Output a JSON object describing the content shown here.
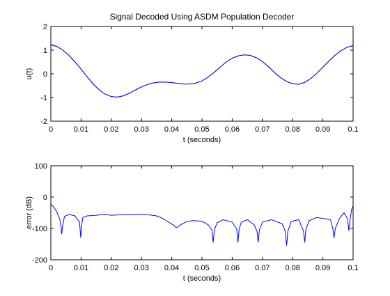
{
  "chart_data": [
    {
      "type": "line",
      "title": "Signal Decoded Using ASDM Population Decoder",
      "xlabel": "t (seconds)",
      "ylabel": "u(t)",
      "xlim": [
        0,
        0.1
      ],
      "ylim": [
        -2,
        2
      ],
      "xticks": [
        "0",
        "0.01",
        "0.02",
        "0.03",
        "0.04",
        "0.05",
        "0.06",
        "0.07",
        "0.08",
        "0.09",
        "0.1"
      ],
      "yticks": [
        "-2",
        "-1",
        "0",
        "1",
        "2"
      ],
      "grid": false,
      "series": [
        {
          "color": "#ff0000",
          "x": [
            0,
            0.002,
            0.004,
            0.006,
            0.008,
            0.01,
            0.012,
            0.014,
            0.016,
            0.018,
            0.02,
            0.022,
            0.024,
            0.026,
            0.028,
            0.03,
            0.032,
            0.034,
            0.036,
            0.038,
            0.04,
            0.042,
            0.044,
            0.046,
            0.048,
            0.05,
            0.052,
            0.054,
            0.056,
            0.058,
            0.06,
            0.062,
            0.064,
            0.066,
            0.068,
            0.07,
            0.072,
            0.074,
            0.076,
            0.078,
            0.08,
            0.082,
            0.084,
            0.086,
            0.088,
            0.09,
            0.092,
            0.094,
            0.096,
            0.098,
            0.1
          ],
          "y": [
            1.22,
            1.15,
            1.0,
            0.78,
            0.5,
            0.2,
            -0.12,
            -0.43,
            -0.68,
            -0.86,
            -0.96,
            -0.98,
            -0.93,
            -0.82,
            -0.68,
            -0.55,
            -0.45,
            -0.38,
            -0.35,
            -0.35,
            -0.37,
            -0.4,
            -0.43,
            -0.43,
            -0.39,
            -0.3,
            -0.14,
            0.06,
            0.28,
            0.5,
            0.66,
            0.76,
            0.8,
            0.78,
            0.68,
            0.52,
            0.3,
            0.06,
            -0.16,
            -0.32,
            -0.42,
            -0.44,
            -0.36,
            -0.2,
            0.02,
            0.28,
            0.54,
            0.78,
            0.98,
            1.12,
            1.2
          ]
        },
        {
          "color": "#0000ff",
          "x": [
            0,
            0.002,
            0.004,
            0.006,
            0.008,
            0.01,
            0.012,
            0.014,
            0.016,
            0.018,
            0.02,
            0.022,
            0.024,
            0.026,
            0.028,
            0.03,
            0.032,
            0.034,
            0.036,
            0.038,
            0.04,
            0.042,
            0.044,
            0.046,
            0.048,
            0.05,
            0.052,
            0.054,
            0.056,
            0.058,
            0.06,
            0.062,
            0.064,
            0.066,
            0.068,
            0.07,
            0.072,
            0.074,
            0.076,
            0.078,
            0.08,
            0.082,
            0.084,
            0.086,
            0.088,
            0.09,
            0.092,
            0.094,
            0.096,
            0.098,
            0.1
          ],
          "y": [
            1.24,
            1.16,
            1.0,
            0.78,
            0.5,
            0.2,
            -0.12,
            -0.43,
            -0.68,
            -0.86,
            -0.96,
            -0.98,
            -0.93,
            -0.82,
            -0.68,
            -0.55,
            -0.45,
            -0.38,
            -0.35,
            -0.35,
            -0.37,
            -0.4,
            -0.43,
            -0.43,
            -0.39,
            -0.3,
            -0.14,
            0.06,
            0.28,
            0.5,
            0.66,
            0.76,
            0.8,
            0.78,
            0.68,
            0.52,
            0.3,
            0.06,
            -0.16,
            -0.32,
            -0.42,
            -0.44,
            -0.36,
            -0.2,
            0.02,
            0.28,
            0.54,
            0.78,
            0.98,
            1.12,
            1.18
          ]
        }
      ]
    },
    {
      "type": "line",
      "title": "",
      "xlabel": "t (seconds)",
      "ylabel": "error (dB)",
      "xlim": [
        0,
        0.1
      ],
      "ylim": [
        -200,
        100
      ],
      "xticks": [
        "0",
        "0.01",
        "0.02",
        "0.03",
        "0.04",
        "0.05",
        "0.06",
        "0.07",
        "0.08",
        "0.09",
        "0.1"
      ],
      "yticks": [
        "-200",
        "-100",
        "0",
        "100"
      ],
      "grid": false,
      "series": [
        {
          "color": "#0000ff",
          "x": [
            0,
            0.001,
            0.002,
            0.003,
            0.0034,
            0.0036,
            0.0039,
            0.0045,
            0.006,
            0.008,
            0.0095,
            0.0099,
            0.0101,
            0.0106,
            0.012,
            0.015,
            0.018,
            0.02,
            0.022,
            0.025,
            0.028,
            0.03,
            0.032,
            0.035,
            0.037,
            0.039,
            0.041,
            0.0413,
            0.0415,
            0.042,
            0.043,
            0.045,
            0.047,
            0.05,
            0.052,
            0.0533,
            0.0537,
            0.0541,
            0.055,
            0.057,
            0.06,
            0.0615,
            0.0619,
            0.0623,
            0.063,
            0.065,
            0.0672,
            0.0682,
            0.0686,
            0.069,
            0.07,
            0.073,
            0.0765,
            0.0776,
            0.078,
            0.0784,
            0.0795,
            0.082,
            0.0836,
            0.084,
            0.0844,
            0.0855,
            0.088,
            0.0925,
            0.0933,
            0.0937,
            0.0941,
            0.0955,
            0.097,
            0.0982,
            0.0986,
            0.099,
            0.0995,
            0.1
          ],
          "y": [
            -22,
            -32,
            -48,
            -72,
            -95,
            -118,
            -92,
            -62,
            -55,
            -60,
            -80,
            -130,
            -95,
            -65,
            -60,
            -58,
            -55,
            -58,
            -57,
            -56,
            -55,
            -55,
            -56,
            -60,
            -68,
            -80,
            -92,
            -97,
            -98,
            -95,
            -88,
            -78,
            -75,
            -77,
            -88,
            -105,
            -145,
            -105,
            -82,
            -72,
            -80,
            -102,
            -145,
            -102,
            -80,
            -72,
            -88,
            -108,
            -145,
            -105,
            -80,
            -72,
            -85,
            -110,
            -155,
            -110,
            -78,
            -72,
            -108,
            -145,
            -102,
            -75,
            -65,
            -72,
            -100,
            -130,
            -100,
            -68,
            -50,
            -70,
            -108,
            -72,
            -40,
            -28
          ]
        }
      ]
    }
  ]
}
